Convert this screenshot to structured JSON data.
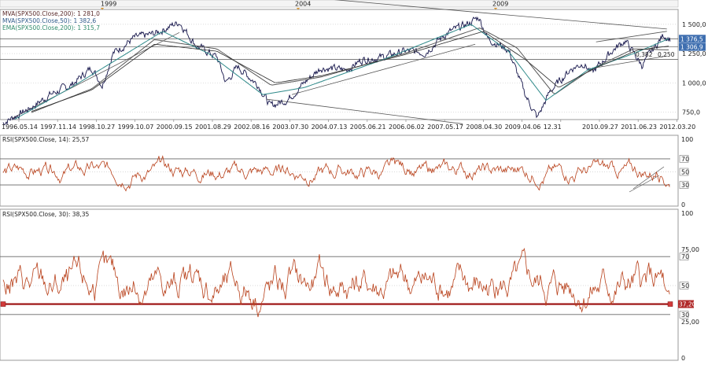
{
  "colors": {
    "price": "#14144a",
    "rsi": "#b8401a",
    "mva200": "#5a5a5a",
    "mva50": "#2f8a8a",
    "ema200": "#2a2a2a",
    "refline": "#9b0d0d",
    "badge": "#3f6fb0",
    "badge_red": "#b12a2a",
    "marker": "#e39a2e"
  },
  "top_axis": {
    "labels": [
      "1999",
      "2004",
      "2009"
    ]
  },
  "chart_data": [
    {
      "type": "line",
      "legend": [
        {
          "text": "MVA(SPX500.Close,200): 1 281,0",
          "color": "#5a2a2a"
        },
        {
          "text": "MVA(SPX500.Close,50): 1 382,6",
          "color": "#2f5a8a"
        },
        {
          "text": "EMA(SPX500.Close,200): 1 315,7",
          "color": "#2f8a6a"
        }
      ],
      "y_ticks": [
        "1 500,0",
        "1 250,0",
        "1 000,0",
        "750,0"
      ],
      "ylim": [
        700,
        1600
      ],
      "x_ticks": [
        "1996.05.14",
        "1997.11.14",
        "1998.10.27",
        "1999.10.07",
        "2000.09.15",
        "2001.08.29",
        "2002.08.16",
        "2003.07.30",
        "2004.07.13",
        "2005.06.21",
        "2006.06.02",
        "2007.05.17",
        "2008.04.30",
        "2009.04.06",
        "12.31",
        "2010.09.27",
        "2011.06.23",
        "2012.03.20"
      ],
      "price": {
        "x": [
          1996.37,
          1997.0,
          1997.5,
          1998.0,
          1998.5,
          1998.75,
          1999.0,
          1999.5,
          2000.0,
          2000.6,
          2001.0,
          2001.5,
          2001.72,
          2002.0,
          2002.5,
          2002.78,
          2003.2,
          2003.6,
          2004.0,
          2004.6,
          2005.0,
          2005.5,
          2006.0,
          2006.5,
          2007.0,
          2007.5,
          2007.79,
          2008.0,
          2008.5,
          2008.9,
          2009.19,
          2009.5,
          2010.0,
          2010.3,
          2010.5,
          2011.0,
          2011.3,
          2011.7,
          2012.0,
          2012.22,
          2012.38
        ],
        "y": [
          660,
          780,
          900,
          980,
          1130,
          980,
          1250,
          1380,
          1420,
          1520,
          1320,
          1220,
          1000,
          1140,
          980,
          800,
          860,
          1000,
          1130,
          1110,
          1200,
          1220,
          1270,
          1260,
          1420,
          1500,
          1560,
          1380,
          1280,
          900,
          700,
          930,
          1120,
          1170,
          1080,
          1280,
          1360,
          1150,
          1300,
          1410,
          1376.5
        ]
      },
      "mva200": {
        "x": [
          1997.0,
          1998.5,
          2000.0,
          2001.5,
          2002.8,
          2004.0,
          2006.0,
          2007.8,
          2008.7,
          2009.6,
          2010.5,
          2011.5,
          2012.38
        ],
        "y": [
          740,
          950,
          1370,
          1290,
          980,
          1050,
          1250,
          1470,
          1300,
          900,
          1120,
          1290,
          1281.0
        ]
      },
      "mva50": {
        "x": [
          1996.6,
          1998.0,
          2000.2,
          2001.3,
          2002.6,
          2003.6,
          2005.5,
          2007.6,
          2008.5,
          2009.4,
          2010.4,
          2011.5,
          2012.38
        ],
        "y": [
          680,
          960,
          1440,
          1250,
          900,
          960,
          1200,
          1500,
          1270,
          850,
          1110,
          1250,
          1382.6
        ]
      },
      "ema200": {
        "x": [
          1997.0,
          1998.5,
          2000.0,
          2001.5,
          2002.9,
          2004.0,
          2006.0,
          2007.9,
          2008.9,
          2009.7,
          2010.6,
          2011.6,
          2012.38
        ],
        "y": [
          750,
          940,
          1330,
          1270,
          1000,
          1060,
          1240,
          1440,
          1200,
          960,
          1130,
          1280,
          1315.7
        ]
      },
      "trend_lines": [
        {
          "x": [
            2004.0,
            2012.3
          ],
          "y": [
            1720,
            1460
          ]
        },
        {
          "x": [
            1996.6,
            2000.6
          ],
          "y": [
            700,
            1430
          ]
        },
        {
          "x": [
            2003.3,
            2007.7
          ],
          "y": [
            900,
            1330
          ]
        },
        {
          "x": [
            2010.6,
            2012.3
          ],
          "y": [
            1350,
            1440
          ]
        },
        {
          "x": [
            2010.6,
            2012.3
          ],
          "y": [
            1130,
            1230
          ]
        },
        {
          "x": [
            2002.7,
            2007.4
          ],
          "y": [
            860,
            650
          ]
        }
      ],
      "h_levels": [
        1376.5,
        1306.9,
        1200
      ],
      "annotations": {
        "fib_label": "0,382",
        "fib_label2": "0,250"
      },
      "badges": [
        "1 376,5",
        "1 306,9"
      ],
      "badge_values": [
        1376.5,
        1306.9
      ]
    },
    {
      "type": "line",
      "title": "RSI(SPX500.Close, 14): 25,57",
      "y_ticks": [
        "100",
        "70",
        "50",
        "30",
        "0"
      ],
      "ylim": [
        0,
        100
      ],
      "levels": [
        70,
        30
      ],
      "last_value": 25.57,
      "seed": 14,
      "right_box_labels": [
        "70",
        "50",
        "30"
      ]
    },
    {
      "type": "line",
      "title": "RSI(SPX500.Close, 30): 38,35",
      "y_ticks": [
        "100",
        "75,00",
        "70",
        "50",
        "30",
        "25,00",
        "0"
      ],
      "ylim": [
        0,
        100
      ],
      "levels": [
        70,
        30
      ],
      "ref_value": 37.2,
      "ref_label": "37,20",
      "last_value": 38.35,
      "seed": 30,
      "right_box_labels": [
        "70",
        "50",
        "30"
      ]
    }
  ]
}
